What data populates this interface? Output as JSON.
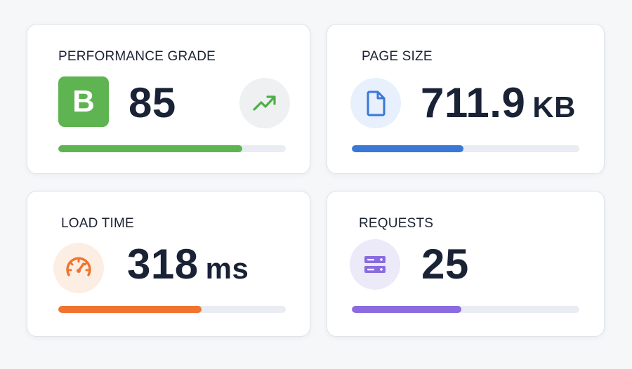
{
  "cards": {
    "performance": {
      "label": "PERFORMANCE GRADE",
      "grade": "B",
      "score": "85",
      "progress": 0.81,
      "color": "#5eb450",
      "icon": "trend-up-icon"
    },
    "page_size": {
      "label": "PAGE SIZE",
      "value": "711.9",
      "unit": "KB",
      "progress": 0.49,
      "color": "#3a78d8",
      "icon": "file-icon"
    },
    "load_time": {
      "label": "LOAD TIME",
      "value": "318",
      "unit": "ms",
      "progress": 0.63,
      "color": "#f0732e",
      "icon": "speedometer-icon"
    },
    "requests": {
      "label": "REQUESTS",
      "value": "25",
      "progress": 0.48,
      "color": "#8a6be0",
      "icon": "server-icon"
    }
  }
}
